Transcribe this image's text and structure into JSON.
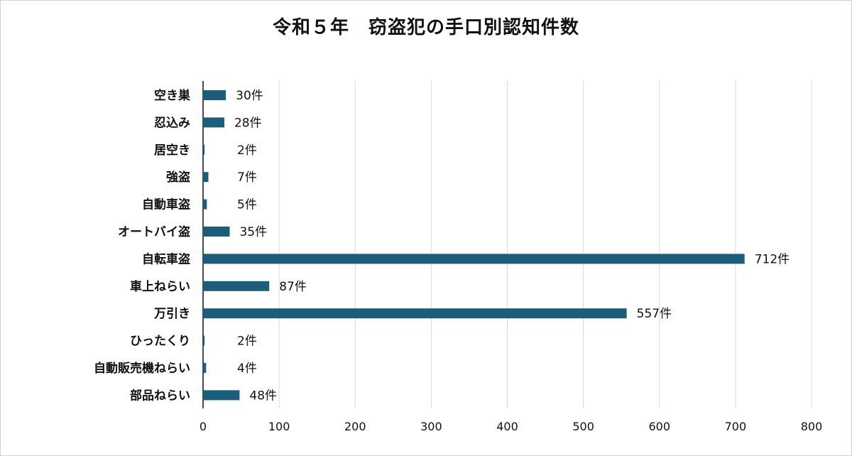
{
  "chart_data": {
    "type": "bar",
    "orientation": "horizontal",
    "title": "令和５年　窃盗犯の手口別認知件数",
    "categories": [
      "空き巣",
      "忍込み",
      "居空き",
      "強盗",
      "自動車盗",
      "オートバイ盗",
      "自転車盗",
      "車上ねらい",
      "万引き",
      "ひったくり",
      "自動販売機ねらい",
      "部品ねらい"
    ],
    "values": [
      30,
      28,
      2,
      7,
      5,
      35,
      712,
      87,
      557,
      2,
      4,
      48
    ],
    "value_labels": [
      "30件",
      "28件",
      "2件",
      "7件",
      "5件",
      "35件",
      "712件",
      "87件",
      "557件",
      "2件",
      "4件",
      "48件"
    ],
    "xlim": [
      0,
      800
    ],
    "ticks": [
      "0",
      "100",
      "200",
      "300",
      "400",
      "500",
      "600",
      "700",
      "800"
    ],
    "tick_values": [
      0,
      100,
      200,
      300,
      400,
      500,
      600,
      700,
      800
    ],
    "grid": "vertical",
    "bar_color": "#1b5e7b",
    "grid_color": "#d9d9d9"
  }
}
